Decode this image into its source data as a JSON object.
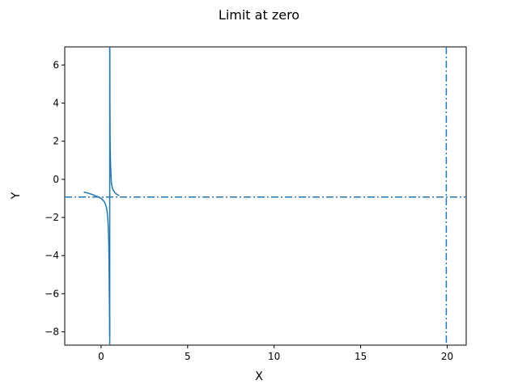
{
  "chart_data": {
    "type": "line",
    "title": "Limit at zero",
    "xlabel": "X",
    "ylabel": "Y",
    "xlim": [
      -2.1,
      21.1
    ],
    "ylim": [
      -8.7,
      6.95
    ],
    "grid": false,
    "xticks": [
      0,
      5,
      10,
      15,
      20
    ],
    "yticks": [
      -8,
      -6,
      -4,
      -2,
      0,
      2,
      4,
      6
    ],
    "line_color": "#1f77b4",
    "series": [
      {
        "x": [
          -1.0,
          -0.9,
          -0.8,
          -0.7,
          -0.6,
          -0.5,
          -0.4,
          -0.3,
          -0.2,
          -0.1,
          0.0,
          0.1,
          0.2,
          0.25,
          0.3,
          0.35,
          0.4,
          0.43,
          0.45,
          0.47,
          0.48,
          0.49,
          0.495
        ],
        "y": [
          -0.67,
          -0.69,
          -0.71,
          -0.74,
          -0.77,
          -0.8,
          -0.83,
          -0.87,
          -0.91,
          -0.95,
          -1.0,
          -1.08,
          -1.2,
          -1.3,
          -1.45,
          -1.7,
          -2.2,
          -2.9,
          -3.6,
          -5.1,
          -6.5,
          -7.5,
          -8.2
        ]
      },
      {
        "x": [
          0.505,
          0.51,
          0.52,
          0.53,
          0.55,
          0.6,
          0.65,
          0.7,
          0.8,
          0.9,
          1.0,
          1.05
        ],
        "y": [
          6.9,
          4.2,
          2.3,
          1.5,
          0.6,
          -0.2,
          -0.45,
          -0.56,
          -0.7,
          -0.78,
          -0.83,
          -0.85
        ]
      }
    ],
    "reference_lines": [
      {
        "orientation": "vertical",
        "value": 0.5,
        "style": "solid"
      },
      {
        "orientation": "vertical",
        "value": 19.95,
        "style": "dashdot"
      },
      {
        "orientation": "horizontal",
        "value": -0.93,
        "style": "dashdot"
      }
    ]
  }
}
